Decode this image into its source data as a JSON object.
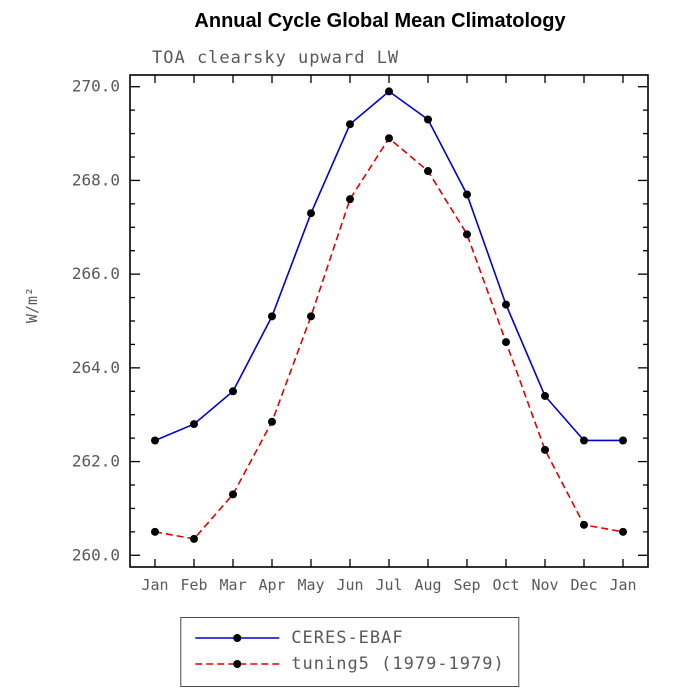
{
  "title": "Annual Cycle Global Mean Climatology",
  "chart_data": {
    "type": "line",
    "title": "Annual Cycle Global Mean Climatology",
    "subtitle": "TOA clearsky upward LW",
    "ylabel": "W/m²",
    "categories": [
      "Jan",
      "Feb",
      "Mar",
      "Apr",
      "May",
      "Jun",
      "Jul",
      "Aug",
      "Sep",
      "Oct",
      "Nov",
      "Dec",
      "Jan"
    ],
    "series": [
      {
        "name": "CERES-EBAF",
        "color": "#0000cc",
        "line_style": "solid",
        "marker": "circle",
        "marker_color": "#000000",
        "values": [
          262.45,
          262.8,
          263.5,
          265.1,
          267.3,
          269.2,
          269.9,
          269.3,
          267.7,
          265.35,
          263.4,
          262.45,
          262.45
        ]
      },
      {
        "name": "tuning5 (1979-1979)",
        "color": "#dd0000",
        "line_style": "dashed",
        "marker": "circle",
        "marker_color": "#000000",
        "values": [
          260.5,
          260.35,
          261.3,
          262.85,
          265.1,
          267.6,
          268.9,
          268.2,
          266.85,
          264.55,
          262.25,
          260.65,
          260.5
        ]
      }
    ],
    "ylim": [
      260.0,
      270.0
    ],
    "ytick_step": 2.0,
    "ytick_label_format": "one-decimal",
    "xlabel": "",
    "grid": false,
    "legend_position": "bottom-center",
    "axis_color": "#000000",
    "tick_label_color": "#595959"
  }
}
